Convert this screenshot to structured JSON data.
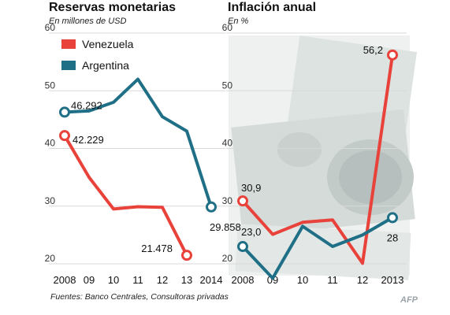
{
  "colors": {
    "venezuela": "#e8423a",
    "argentina": "#1f6f86",
    "grid": "#d9d9d9",
    "banknote": "#c9d0cf"
  },
  "footer": {
    "source": "Fuentes: Banco Centrales, Consultoras privadas",
    "credit": "AFP"
  },
  "chart_data": [
    {
      "type": "line",
      "title": "Reservas monetarias",
      "subtitle": "En millones de USD",
      "ylim": [
        20,
        60
      ],
      "yticks": [
        "20",
        "30",
        "40",
        "50",
        "60"
      ],
      "x": [
        2008,
        2009,
        2010,
        2011,
        2012,
        2013,
        2014
      ],
      "xticklabels": [
        "2008",
        "09",
        "10",
        "11",
        "12",
        "13",
        "2014"
      ],
      "legend": [
        "Venezuela",
        "Argentina"
      ],
      "legend_position": "top-left",
      "grid": "horizontal",
      "series": [
        {
          "name": "Venezuela",
          "color": "#e8423a",
          "points": [
            [
              2008,
              42.229
            ],
            [
              2009,
              35.0
            ],
            [
              2010,
              29.5
            ],
            [
              2011,
              29.9
            ],
            [
              2012,
              29.8
            ],
            [
              2013,
              21.478
            ]
          ],
          "labels": [
            {
              "x": 2008,
              "y": 42.229,
              "text": "42.229"
            },
            {
              "x": 2013,
              "y": 21.478,
              "text": "21.478"
            }
          ]
        },
        {
          "name": "Argentina",
          "color": "#1f6f86",
          "points": [
            [
              2008,
              46.292
            ],
            [
              2009,
              46.5
            ],
            [
              2010,
              48.0
            ],
            [
              2011,
              52.0
            ],
            [
              2012,
              45.5
            ],
            [
              2013,
              43.0
            ],
            [
              2014,
              29.858
            ]
          ],
          "labels": [
            {
              "x": 2008,
              "y": 46.292,
              "text": "46.292"
            },
            {
              "x": 2014,
              "y": 29.858,
              "text": "29.858"
            }
          ]
        }
      ]
    },
    {
      "type": "line",
      "title": "Inflación anual",
      "subtitle": "En %",
      "ylim": [
        20,
        60
      ],
      "yticks": [
        "20",
        "30",
        "40",
        "50",
        "60"
      ],
      "x": [
        2008,
        2009,
        2010,
        2011,
        2012,
        2013
      ],
      "xticklabels": [
        "2008",
        "09",
        "10",
        "11",
        "12",
        "2013"
      ],
      "grid": "horizontal",
      "series": [
        {
          "name": "Venezuela",
          "color": "#e8423a",
          "points": [
            [
              2008,
              30.9
            ],
            [
              2009,
              25.1
            ],
            [
              2010,
              27.2
            ],
            [
              2011,
              27.6
            ],
            [
              2012,
              20.1
            ],
            [
              2013,
              56.2
            ]
          ],
          "labels": [
            {
              "x": 2008,
              "y": 30.9,
              "text": "30,9"
            },
            {
              "x": 2013,
              "y": 56.2,
              "text": "56,2"
            }
          ]
        },
        {
          "name": "Argentina",
          "color": "#1f6f86",
          "points": [
            [
              2008,
              23.0
            ],
            [
              2009,
              17.5
            ],
            [
              2010,
              26.5
            ],
            [
              2011,
              23.0
            ],
            [
              2012,
              25.0
            ],
            [
              2013,
              28.0
            ]
          ],
          "labels": [
            {
              "x": 2008,
              "y": 23.0,
              "text": "23,0"
            },
            {
              "x": 2013,
              "y": 28.0,
              "text": "28"
            }
          ]
        }
      ]
    }
  ]
}
